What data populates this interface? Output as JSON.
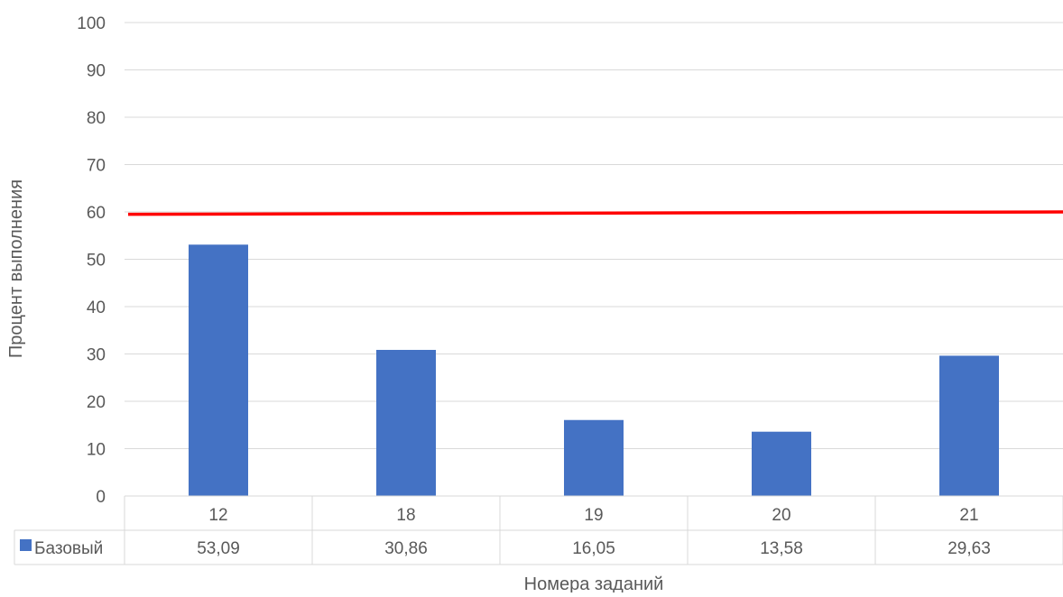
{
  "chart_data": {
    "type": "bar",
    "categories": [
      "12",
      "18",
      "19",
      "20",
      "21"
    ],
    "series": [
      {
        "name": "Базовый",
        "values": [
          53.09,
          30.86,
          16.05,
          13.58,
          29.63
        ],
        "value_labels": [
          "53,09",
          "30,86",
          "16,05",
          "13,58",
          "29,63"
        ],
        "color": "#4472C4"
      }
    ],
    "reference_line": {
      "y_start": 59.5,
      "y_end": 60,
      "color": "#FF0000"
    },
    "xlabel": "Номера заданий",
    "ylabel": "Процент выполнения",
    "ylim": [
      0,
      100
    ],
    "yticks": [
      "0",
      "10",
      "20",
      "30",
      "40",
      "50",
      "60",
      "70",
      "80",
      "90",
      "100"
    ],
    "grid": true,
    "legend": "data-table-left",
    "gridline_color": "#D9D9D9",
    "text_color": "#595959"
  }
}
